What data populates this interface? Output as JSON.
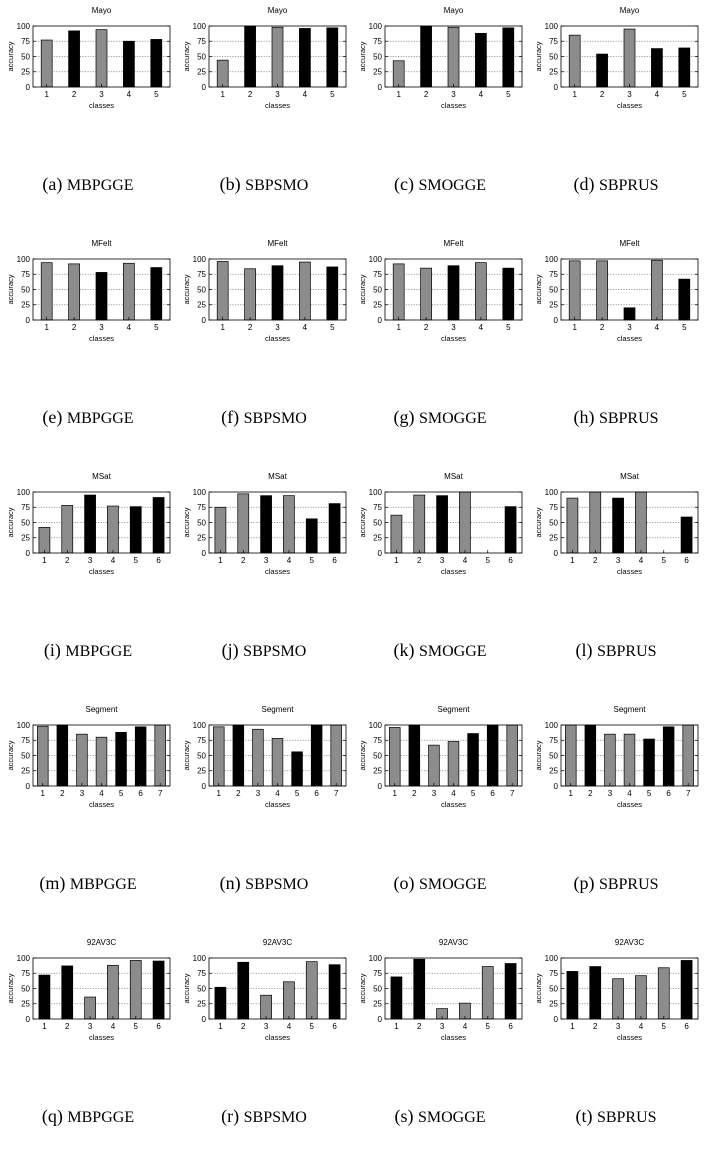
{
  "colors": {
    "gray": "#8c8c8c",
    "black": "#000000",
    "grid": "#808080"
  },
  "axis": {
    "ylabel": "accuracy",
    "xlabel": "classes",
    "yticks": [
      0,
      25,
      50,
      75,
      100
    ],
    "ylim": [
      0,
      100
    ]
  },
  "chart_data": [
    {
      "type": "bar",
      "title": "Mayo",
      "caption": "(a)",
      "method": "MBPGGE",
      "categories": [
        "1",
        "2",
        "3",
        "4",
        "5"
      ],
      "values": [
        77,
        92,
        94,
        75,
        78
      ],
      "colors": [
        "gray",
        "black",
        "gray",
        "black",
        "black"
      ]
    },
    {
      "type": "bar",
      "title": "Mayo",
      "caption": "(b)",
      "method": "SBPSMO",
      "categories": [
        "1",
        "2",
        "3",
        "4",
        "5"
      ],
      "values": [
        44,
        100,
        98,
        96,
        97
      ],
      "colors": [
        "gray",
        "black",
        "gray",
        "black",
        "black"
      ]
    },
    {
      "type": "bar",
      "title": "Mayo",
      "caption": "(c)",
      "method": "SMOGGE",
      "categories": [
        "1",
        "2",
        "3",
        "4",
        "5"
      ],
      "values": [
        43,
        100,
        98,
        88,
        97
      ],
      "colors": [
        "gray",
        "black",
        "gray",
        "black",
        "black"
      ]
    },
    {
      "type": "bar",
      "title": "Mayo",
      "caption": "(d)",
      "method": "SBPRUS",
      "categories": [
        "1",
        "2",
        "3",
        "4",
        "5"
      ],
      "values": [
        85,
        54,
        95,
        63,
        64
      ],
      "colors": [
        "gray",
        "black",
        "gray",
        "black",
        "black"
      ]
    },
    {
      "type": "bar",
      "title": "MFelt",
      "caption": "(e)",
      "method": "MBPGGE",
      "categories": [
        "1",
        "2",
        "3",
        "4",
        "5"
      ],
      "values": [
        94,
        92,
        78,
        93,
        86
      ],
      "colors": [
        "gray",
        "gray",
        "black",
        "gray",
        "black"
      ]
    },
    {
      "type": "bar",
      "title": "MFelt",
      "caption": "(f)",
      "method": "SBPSMO",
      "categories": [
        "1",
        "2",
        "3",
        "4",
        "5"
      ],
      "values": [
        96,
        84,
        89,
        95,
        87
      ],
      "colors": [
        "gray",
        "gray",
        "black",
        "gray",
        "black"
      ]
    },
    {
      "type": "bar",
      "title": "MFelt",
      "caption": "(g)",
      "method": "SMOGGE",
      "categories": [
        "1",
        "2",
        "3",
        "4",
        "5"
      ],
      "values": [
        92,
        85,
        89,
        94,
        85
      ],
      "colors": [
        "gray",
        "gray",
        "black",
        "gray",
        "black"
      ]
    },
    {
      "type": "bar",
      "title": "MFelt",
      "caption": "(h)",
      "method": "SBPRUS",
      "categories": [
        "1",
        "2",
        "3",
        "4",
        "5"
      ],
      "values": [
        97,
        97,
        20,
        98,
        67
      ],
      "colors": [
        "gray",
        "gray",
        "black",
        "gray",
        "black"
      ]
    },
    {
      "type": "bar",
      "title": "MSat",
      "caption": "(i)",
      "method": "MBPGGE",
      "categories": [
        "1",
        "2",
        "3",
        "4",
        "5",
        "6"
      ],
      "values": [
        42,
        78,
        95,
        77,
        76,
        91
      ],
      "colors": [
        "gray",
        "gray",
        "black",
        "gray",
        "black",
        "black"
      ]
    },
    {
      "type": "bar",
      "title": "MSat",
      "caption": "(j)",
      "method": "SBPSMO",
      "categories": [
        "1",
        "2",
        "3",
        "4",
        "5",
        "6"
      ],
      "values": [
        75,
        97,
        94,
        94,
        56,
        81
      ],
      "colors": [
        "gray",
        "gray",
        "black",
        "gray",
        "black",
        "black"
      ]
    },
    {
      "type": "bar",
      "title": "MSat",
      "caption": "(k)",
      "method": "SMOGGE",
      "categories": [
        "1",
        "2",
        "3",
        "4",
        "5",
        "6"
      ],
      "values": [
        62,
        95,
        94,
        100,
        0,
        76
      ],
      "colors": [
        "gray",
        "gray",
        "black",
        "gray",
        "black",
        "black"
      ]
    },
    {
      "type": "bar",
      "title": "MSat",
      "caption": "(l)",
      "method": "SBPRUS",
      "categories": [
        "1",
        "2",
        "3",
        "4",
        "5",
        "6"
      ],
      "values": [
        90,
        100,
        90,
        100,
        0,
        59
      ],
      "colors": [
        "gray",
        "gray",
        "black",
        "gray",
        "black",
        "black"
      ]
    },
    {
      "type": "bar",
      "title": "Segment",
      "caption": "(m)",
      "method": "MBPGGE",
      "categories": [
        "1",
        "2",
        "3",
        "4",
        "5",
        "6",
        "7"
      ],
      "values": [
        98,
        100,
        85,
        80,
        88,
        97,
        100
      ],
      "colors": [
        "gray",
        "black",
        "gray",
        "gray",
        "black",
        "black",
        "gray"
      ]
    },
    {
      "type": "bar",
      "title": "Segment",
      "caption": "(n)",
      "method": "SBPSMO",
      "categories": [
        "1",
        "2",
        "3",
        "4",
        "5",
        "6",
        "7"
      ],
      "values": [
        97,
        100,
        93,
        78,
        56,
        100,
        100
      ],
      "colors": [
        "gray",
        "black",
        "gray",
        "gray",
        "black",
        "black",
        "gray"
      ]
    },
    {
      "type": "bar",
      "title": "Segment",
      "caption": "(o)",
      "method": "SMOGGE",
      "categories": [
        "1",
        "2",
        "3",
        "4",
        "5",
        "6",
        "7"
      ],
      "values": [
        96,
        100,
        67,
        73,
        86,
        100,
        100
      ],
      "colors": [
        "gray",
        "black",
        "gray",
        "gray",
        "black",
        "black",
        "gray"
      ]
    },
    {
      "type": "bar",
      "title": "Segment",
      "caption": "(p)",
      "method": "SBPRUS",
      "categories": [
        "1",
        "2",
        "3",
        "4",
        "5",
        "6",
        "7"
      ],
      "values": [
        100,
        100,
        85,
        85,
        77,
        97,
        100
      ],
      "colors": [
        "gray",
        "black",
        "gray",
        "gray",
        "black",
        "black",
        "gray"
      ]
    },
    {
      "type": "bar",
      "title": "92AV3C",
      "caption": "(q)",
      "method": "MBPGGE",
      "categories": [
        "1",
        "2",
        "3",
        "4",
        "5",
        "6"
      ],
      "values": [
        72,
        87,
        36,
        88,
        96,
        95
      ],
      "colors": [
        "black",
        "black",
        "gray",
        "gray",
        "gray",
        "black"
      ]
    },
    {
      "type": "bar",
      "title": "92AV3C",
      "caption": "(r)",
      "method": "SBPSMO",
      "categories": [
        "1",
        "2",
        "3",
        "4",
        "5",
        "6"
      ],
      "values": [
        52,
        93,
        39,
        61,
        94,
        89
      ],
      "colors": [
        "black",
        "black",
        "gray",
        "gray",
        "gray",
        "black"
      ]
    },
    {
      "type": "bar",
      "title": "92AV3C",
      "caption": "(s)",
      "method": "SMOGGE",
      "categories": [
        "1",
        "2",
        "3",
        "4",
        "5",
        "6"
      ],
      "values": [
        69,
        98,
        17,
        26,
        86,
        91
      ],
      "colors": [
        "black",
        "black",
        "gray",
        "gray",
        "gray",
        "black"
      ]
    },
    {
      "type": "bar",
      "title": "92AV3C",
      "caption": "(t)",
      "method": "SBPRUS",
      "categories": [
        "1",
        "2",
        "3",
        "4",
        "5",
        "6"
      ],
      "values": [
        78,
        86,
        66,
        71,
        84,
        96
      ],
      "colors": [
        "black",
        "black",
        "gray",
        "gray",
        "gray",
        "black"
      ]
    }
  ]
}
